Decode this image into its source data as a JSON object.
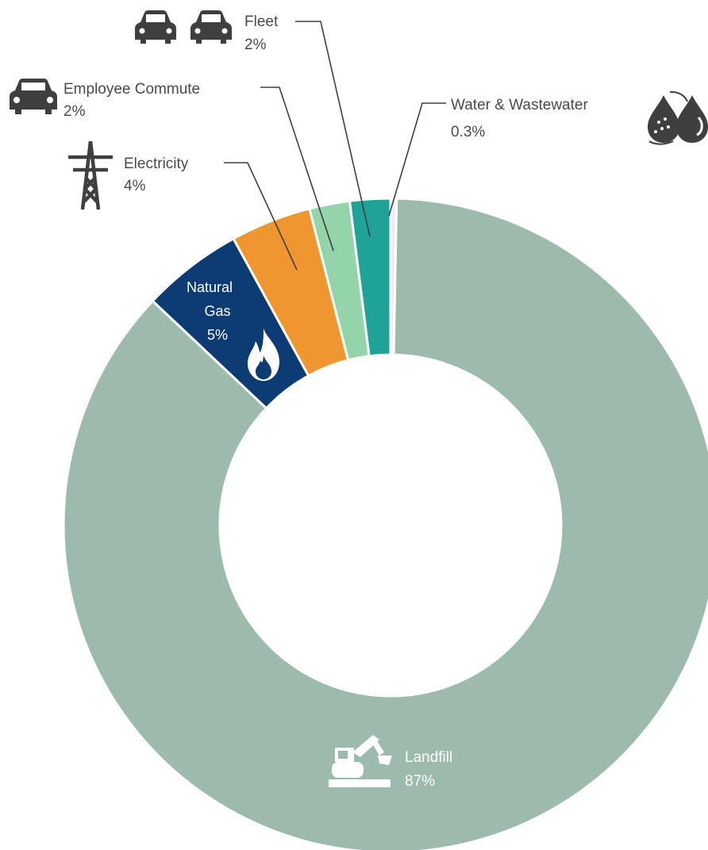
{
  "chart_data": {
    "type": "pie",
    "variant": "donut",
    "categories": [
      "Water & Wastewater",
      "Landfill",
      "Natural Gas",
      "Electricity",
      "Employee Commute",
      "Fleet"
    ],
    "values": [
      0.3,
      87,
      5,
      4,
      2,
      2
    ],
    "value_labels": [
      "0.3%",
      "87%",
      "5%",
      "4%",
      "2%",
      "2%"
    ],
    "colors": [
      "#e8efec",
      "#9dbbad",
      "#0d3b73",
      "#ef9631",
      "#93d4ab",
      "#1fa398"
    ],
    "icons": [
      "water-drops-icon",
      "excavator-icon",
      "flame-icon",
      "power-tower-icon",
      "car-icon",
      "two-cars-icon"
    ]
  },
  "labels": {
    "fleet": {
      "name": "Fleet",
      "value": "2%"
    },
    "commute": {
      "name": "Employee Commute",
      "value": "2%"
    },
    "electricity": {
      "name": "Electricity",
      "value": "4%"
    },
    "water": {
      "name": "Water & Wastewater",
      "value": "0.3%"
    },
    "natural_gas": {
      "name_line1": "Natural",
      "name_line2": "Gas",
      "value": "5%"
    },
    "landfill": {
      "name": "Landfill",
      "value": "87%"
    }
  }
}
